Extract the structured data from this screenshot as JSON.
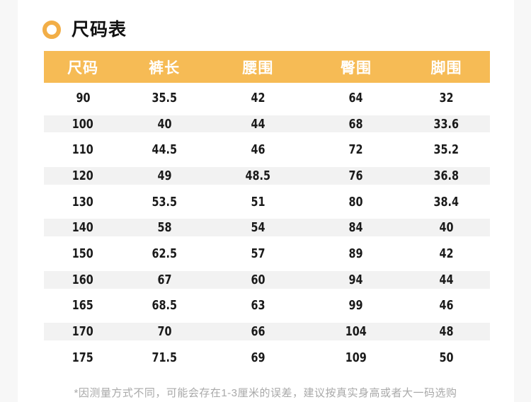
{
  "page": {
    "section_title": "尺码表",
    "footnote": "*因测量方式不同，可能会存在1-3厘米的误差，建议按真实身高或者大一码选购"
  },
  "colors": {
    "accent_orange_header": "#f6bb55",
    "bullet_ring_orange": "#f2ae47",
    "stripe_gray": "#f2f2f2",
    "page_margin_gray": "#f7f7f7",
    "header_text": "#ffffff",
    "cell_text": "#1a1a1a",
    "note_gray": "#a9a9a9"
  },
  "icons": {
    "bullet": "circle-ring-icon"
  },
  "size_table": {
    "columns": [
      "尺码",
      "裤长",
      "腰围",
      "臀围",
      "脚围"
    ],
    "rows": [
      [
        "90",
        "35.5",
        "42",
        "64",
        "32"
      ],
      [
        "100",
        "40",
        "44",
        "68",
        "33.6"
      ],
      [
        "110",
        "44.5",
        "46",
        "72",
        "35.2"
      ],
      [
        "120",
        "49",
        "48.5",
        "76",
        "36.8"
      ],
      [
        "130",
        "53.5",
        "51",
        "80",
        "38.4"
      ],
      [
        "140",
        "58",
        "54",
        "84",
        "40"
      ],
      [
        "150",
        "62.5",
        "57",
        "89",
        "42"
      ],
      [
        "160",
        "67",
        "60",
        "94",
        "44"
      ],
      [
        "165",
        "68.5",
        "63",
        "99",
        "46"
      ],
      [
        "170",
        "70",
        "66",
        "104",
        "48"
      ],
      [
        "175",
        "71.5",
        "69",
        "109",
        "50"
      ]
    ],
    "striped_row_indices": [
      1,
      3,
      5,
      7,
      9
    ]
  }
}
